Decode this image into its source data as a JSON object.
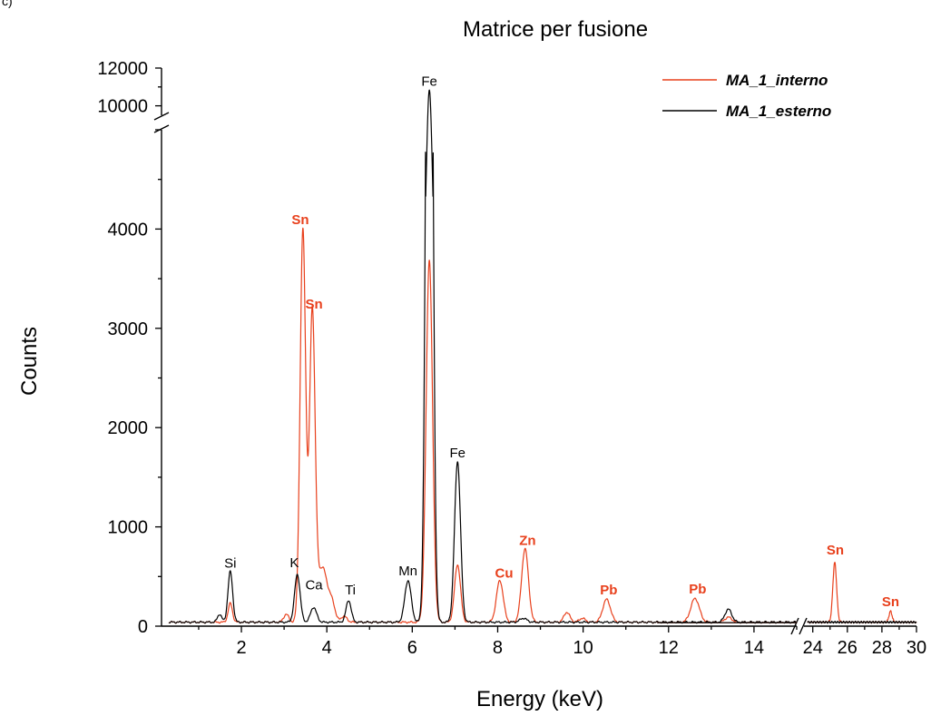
{
  "panel_label": "c)",
  "chart_data": {
    "type": "line",
    "title": "Matrice per fusione",
    "xlabel": "Energy (keV)",
    "ylabel": "Counts",
    "x_segments": [
      {
        "range": [
          0.3,
          15.0
        ],
        "ticks": [
          "2",
          "4",
          "6",
          "8",
          "10",
          "12",
          "14"
        ]
      },
      {
        "range": [
          23.7,
          30.0
        ],
        "ticks": [
          "24",
          "26",
          "28",
          "30"
        ]
      }
    ],
    "y_segments": [
      {
        "range": [
          0,
          5000
        ],
        "ticks": [
          "0",
          "1000",
          "2000",
          "3000",
          "4000"
        ]
      },
      {
        "range": [
          9500,
          12000
        ],
        "ticks": [
          "10000",
          "12000"
        ]
      }
    ],
    "legend_position": "top-right",
    "series": [
      {
        "name": "MA_1_interno",
        "color": "#e8401c",
        "baseline": 40,
        "peaks": [
          [
            1.74,
            190,
            0.05
          ],
          [
            3.05,
            80,
            0.06
          ],
          [
            3.44,
            3950,
            0.065
          ],
          [
            3.66,
            3100,
            0.065
          ],
          [
            3.9,
            550,
            0.12
          ],
          [
            4.13,
            150,
            0.07
          ],
          [
            4.4,
            60,
            0.07
          ],
          [
            6.4,
            3650,
            0.075
          ],
          [
            7.06,
            580,
            0.07
          ],
          [
            8.05,
            420,
            0.08
          ],
          [
            8.64,
            740,
            0.08
          ],
          [
            9.62,
            100,
            0.07
          ],
          [
            9.98,
            40,
            0.07
          ],
          [
            10.55,
            230,
            0.09
          ],
          [
            12.62,
            240,
            0.1
          ],
          [
            13.4,
            50,
            0.08
          ],
          [
            25.27,
            600,
            0.11
          ],
          [
            28.5,
            110,
            0.09
          ]
        ]
      },
      {
        "name": "MA_1_esterno",
        "color": "#000000",
        "baseline": 40,
        "peaks": [
          [
            1.49,
            80,
            0.05
          ],
          [
            1.74,
            510,
            0.055
          ],
          [
            3.31,
            480,
            0.065
          ],
          [
            3.69,
            150,
            0.07
          ],
          [
            4.51,
            220,
            0.06
          ],
          [
            5.9,
            420,
            0.075
          ],
          [
            6.4,
            10800,
            0.07
          ],
          [
            7.06,
            1620,
            0.07
          ],
          [
            8.6,
            40,
            0.08
          ],
          [
            13.4,
            130,
            0.08
          ]
        ]
      }
    ],
    "annotations": [
      {
        "text": "Si",
        "x": 1.74,
        "y": 590,
        "color": "#000000"
      },
      {
        "text": "K",
        "x": 3.24,
        "y": 595,
        "color": "#000000"
      },
      {
        "text": "Ca",
        "x": 3.7,
        "y": 370,
        "color": "#000000"
      },
      {
        "text": "Ti",
        "x": 4.55,
        "y": 320,
        "color": "#000000"
      },
      {
        "text": "Mn",
        "x": 5.9,
        "y": 510,
        "color": "#000000"
      },
      {
        "text": "Fe",
        "x": 6.4,
        "y": 11060,
        "color": "#000000"
      },
      {
        "text": "Fe",
        "x": 7.06,
        "y": 1700,
        "color": "#000000"
      },
      {
        "text": "Sn",
        "x": 3.38,
        "y": 4050,
        "color": "#e8401c"
      },
      {
        "text": "Sn",
        "x": 3.7,
        "y": 3200,
        "color": "#e8401c"
      },
      {
        "text": "Cu",
        "x": 8.15,
        "y": 490,
        "color": "#e8401c"
      },
      {
        "text": "Zn",
        "x": 8.7,
        "y": 820,
        "color": "#e8401c"
      },
      {
        "text": "Pb",
        "x": 10.6,
        "y": 320,
        "color": "#e8401c"
      },
      {
        "text": "Pb",
        "x": 12.68,
        "y": 330,
        "color": "#e8401c"
      },
      {
        "text": "Sn",
        "x": 25.3,
        "y": 720,
        "color": "#e8401c"
      },
      {
        "text": "Sn",
        "x": 28.5,
        "y": 200,
        "color": "#e8401c"
      }
    ]
  }
}
